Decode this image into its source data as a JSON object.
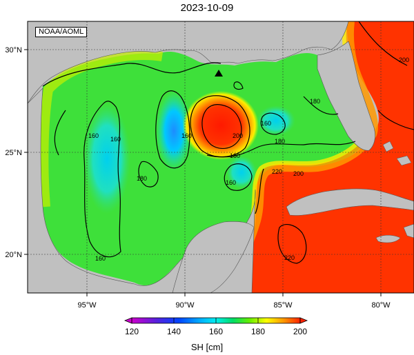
{
  "title": "2023-10-09",
  "credit": "NOAA/AOML",
  "map": {
    "region": "Gulf of Mexico",
    "lon_ticks": [
      "95°W",
      "90°W",
      "85°W",
      "80°W"
    ],
    "lat_ticks": [
      "30°N",
      "25°N",
      "20°N"
    ],
    "lon_range": [
      -98,
      -78
    ],
    "lat_range": [
      18,
      31
    ],
    "contour_labels": [
      "160",
      "160",
      "160",
      "160",
      "180",
      "180",
      "180",
      "180",
      "200",
      "200",
      "200",
      "220",
      "220",
      "160",
      "160"
    ],
    "marker": "triangle"
  },
  "colorbar": {
    "label": "SH [cm]",
    "ticks": [
      "120",
      "140",
      "160",
      "180",
      "200"
    ],
    "min": 120,
    "max": 200,
    "colors": [
      "#cc00cc",
      "#5522dd",
      "#0044ff",
      "#00aaff",
      "#00eeee",
      "#00dd66",
      "#66ee00",
      "#ffff00",
      "#ff9900",
      "#ff2200"
    ]
  }
}
